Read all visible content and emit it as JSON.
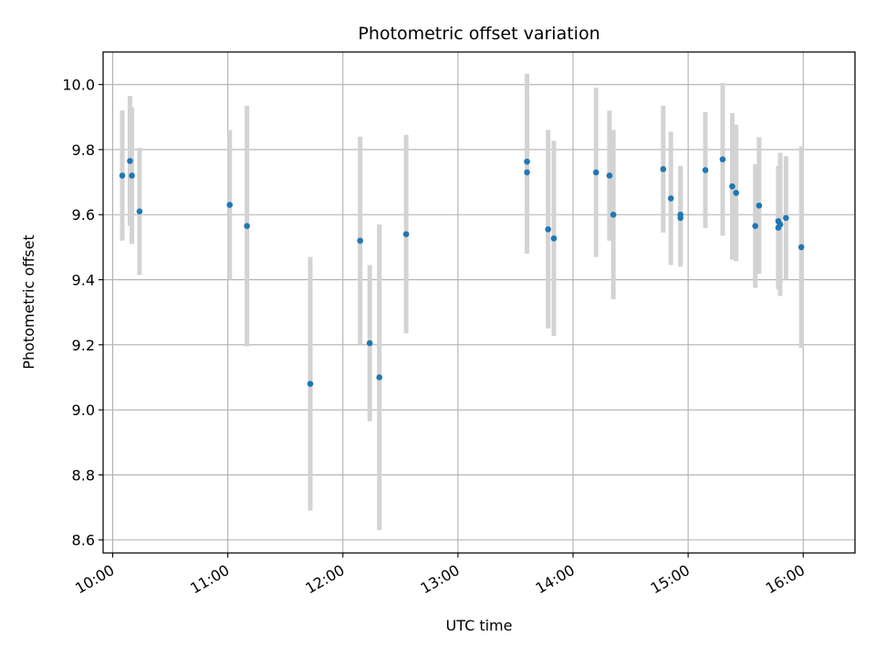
{
  "chart_data": {
    "type": "scatter",
    "title": "Photometric offset variation",
    "xlabel": "UTC time",
    "ylabel": "Photometric offset",
    "x_unit": "time_of_day",
    "xlim": [
      "09:55",
      "16:27"
    ],
    "ylim": [
      8.56,
      10.1
    ],
    "x_ticks": [
      "10:00",
      "11:00",
      "12:00",
      "13:00",
      "14:00",
      "15:00",
      "16:00"
    ],
    "y_ticks": [
      "8.6",
      "8.8",
      "9.0",
      "9.2",
      "9.4",
      "9.6",
      "9.8",
      "10.0"
    ],
    "grid": true,
    "marker_color": "#1f77b4",
    "errorbar_color": "#d3d3d3",
    "points": [
      {
        "time": "10:05",
        "y": 9.72,
        "err": 0.2
      },
      {
        "time": "10:09",
        "y": 9.765,
        "err": 0.2
      },
      {
        "time": "10:10",
        "y": 9.72,
        "err": 0.21
      },
      {
        "time": "10:14",
        "y": 9.61,
        "err": 0.195
      },
      {
        "time": "11:01",
        "y": 9.63,
        "err": 0.23
      },
      {
        "time": "11:10",
        "y": 9.565,
        "err": 0.37
      },
      {
        "time": "11:43",
        "y": 9.08,
        "err": 0.39
      },
      {
        "time": "12:09",
        "y": 9.52,
        "err": 0.32
      },
      {
        "time": "12:14",
        "y": 9.205,
        "err": 0.24
      },
      {
        "time": "12:19",
        "y": 9.1,
        "err": 0.47
      },
      {
        "time": "12:33",
        "y": 9.54,
        "err": 0.305
      },
      {
        "time": "13:36",
        "y": 9.763,
        "err": 0.27
      },
      {
        "time": "13:36",
        "y": 9.73,
        "err": 0.25
      },
      {
        "time": "13:47",
        "y": 9.555,
        "err": 0.305
      },
      {
        "time": "13:50",
        "y": 9.527,
        "err": 0.3
      },
      {
        "time": "14:12",
        "y": 9.73,
        "err": 0.26
      },
      {
        "time": "14:19",
        "y": 9.72,
        "err": 0.2
      },
      {
        "time": "14:21",
        "y": 9.6,
        "err": 0.26
      },
      {
        "time": "14:47",
        "y": 9.74,
        "err": 0.195
      },
      {
        "time": "14:51",
        "y": 9.65,
        "err": 0.205
      },
      {
        "time": "14:56",
        "y": 9.6,
        "err": 0.15
      },
      {
        "time": "14:56",
        "y": 9.59,
        "err": 0.15
      },
      {
        "time": "15:09",
        "y": 9.737,
        "err": 0.178
      },
      {
        "time": "15:18",
        "y": 9.77,
        "err": 0.235
      },
      {
        "time": "15:23",
        "y": 9.687,
        "err": 0.225
      },
      {
        "time": "15:25",
        "y": 9.667,
        "err": 0.21
      },
      {
        "time": "15:35",
        "y": 9.565,
        "err": 0.19
      },
      {
        "time": "15:37",
        "y": 9.628,
        "err": 0.21
      },
      {
        "time": "15:47",
        "y": 9.58,
        "err": 0.165
      },
      {
        "time": "15:47",
        "y": 9.56,
        "err": 0.19
      },
      {
        "time": "15:48",
        "y": 9.57,
        "err": 0.22
      },
      {
        "time": "15:51",
        "y": 9.59,
        "err": 0.19
      },
      {
        "time": "15:59",
        "y": 9.5,
        "err": 0.31
      }
    ]
  }
}
